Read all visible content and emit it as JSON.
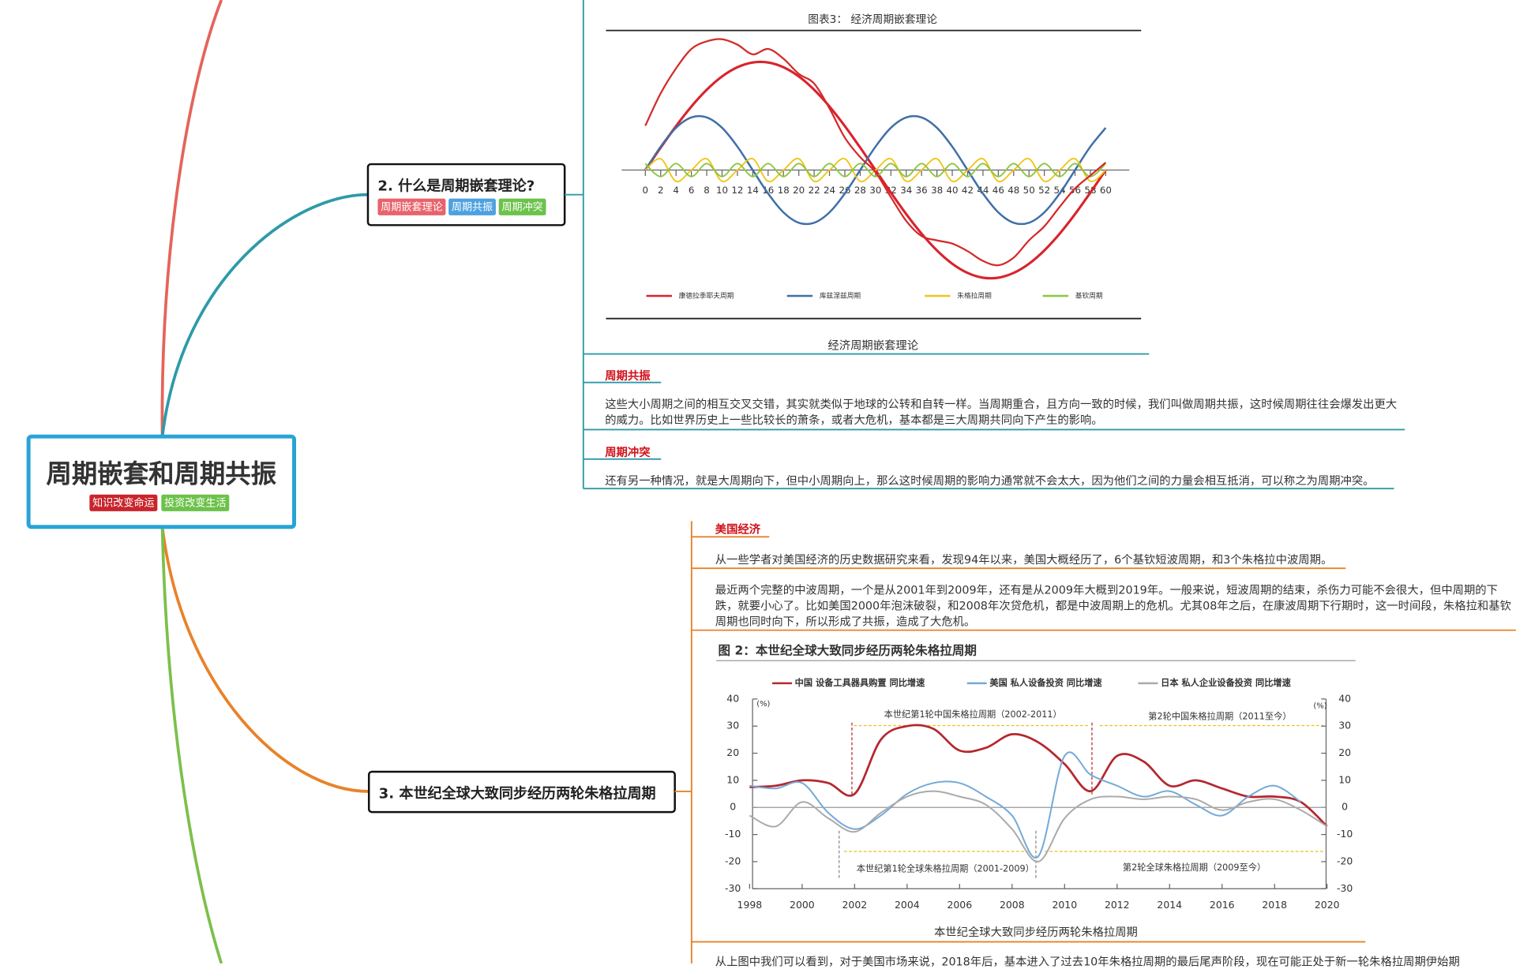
{
  "root": {
    "title": "周期嵌套和周期共振",
    "tags": [
      "知识改变命运",
      "投资改变生活"
    ]
  },
  "topic2": {
    "title": "2. 什么是周期嵌套理论?",
    "tags": [
      "周期嵌套理论",
      "周期共振",
      "周期冲突"
    ],
    "figure": {
      "type": "line",
      "title": "图表3：  经济周期嵌套理论",
      "x": [
        0,
        2,
        4,
        6,
        8,
        10,
        12,
        14,
        16,
        18,
        20,
        22,
        24,
        26,
        28,
        30,
        32,
        34,
        36,
        38,
        40,
        42,
        44,
        46,
        48,
        50,
        52,
        54,
        56,
        58,
        60
      ],
      "xlim": [
        0,
        60
      ],
      "xticks": [
        0,
        2,
        4,
        6,
        8,
        10,
        12,
        14,
        16,
        18,
        20,
        22,
        24,
        26,
        28,
        30,
        32,
        34,
        36,
        38,
        40,
        42,
        44,
        46,
        48,
        50,
        52,
        54,
        56,
        58,
        60
      ],
      "series": [
        {
          "name": "康德拉季耶夫周期",
          "color": "#d9232d",
          "values": [
            0,
            20.8,
            40.7,
            58.8,
            74.3,
            86.6,
            95.1,
            99.5,
            99.5,
            95.1,
            86.6,
            74.3,
            58.8,
            40.7,
            20.8,
            0,
            -20.8,
            -40.7,
            -58.8,
            -74.3,
            -86.6,
            -95.1,
            -99.5,
            -99.5,
            -95.1,
            -86.6,
            -74.3,
            -58.8,
            -40.7,
            -20.8,
            0
          ]
        },
        {
          "name": "库兹涅兹周期",
          "color": "#3f6fa8",
          "values": [
            0,
            21.7,
            39.1,
            48.7,
            48.7,
            39.1,
            21.7,
            0,
            -21.7,
            -39.1,
            -48.7,
            -48.7,
            -39.1,
            -21.7,
            0,
            21.7,
            39.1,
            48.7,
            48.7,
            39.1,
            21.7,
            0,
            -21.7,
            -39.1,
            -48.7,
            -48.7,
            -39.1,
            -21.7,
            0,
            21.7,
            39.1
          ]
        },
        {
          "name": "朱格拉周期",
          "color": "#f0c419",
          "values": [
            0,
            10.4,
            -10.4,
            0,
            10.4,
            -10.4,
            0,
            10.4,
            -10.4,
            0,
            10.4,
            -10.4,
            0,
            10.4,
            -10.4,
            0,
            10.4,
            -10.4,
            0,
            10.4,
            -10.4,
            0,
            10.4,
            -10.4,
            0,
            10.4,
            -10.4,
            0,
            10.4,
            -10.4,
            0
          ]
        },
        {
          "name": "基钦周期",
          "color": "#8cc63f",
          "values": [
            6,
            -6,
            6,
            -6,
            6,
            -6,
            6,
            -6,
            6,
            -6,
            6,
            -6,
            6,
            -6,
            6,
            -6,
            6,
            -6,
            6,
            -6,
            6,
            -6,
            6,
            -6,
            6,
            -6,
            6,
            -6,
            6,
            -6,
            6
          ]
        },
        {
          "color": "#d42a2a",
          "values": [
            41,
            71,
            94,
            112,
            119,
            121,
            116,
            107,
            112,
            103,
            89,
            80,
            57,
            30,
            12,
            -2,
            -25,
            -47,
            -61,
            -65,
            -68,
            -75,
            -84,
            -88,
            -81,
            -65,
            -52,
            -34,
            -17,
            -5,
            7
          ]
        }
      ],
      "caption": "经济周期嵌套理论"
    },
    "sections": [
      {
        "label": "周期共振",
        "text": "这些大小周期之间的相互交叉交错，其实就类似于地球的公转和自转一样。当周期重合，且方向一致的时候，我们叫做周期共振，这时候周期往往会爆发出更大的威力。比如世界历史上一些比较长的萧条，或者大危机，基本都是三大周期共同向下产生的影响。"
      },
      {
        "label": "周期冲突",
        "text": "还有另一种情况，就是大周期向下，但中小周期向上，那么这时候周期的影响力通常就不会太大，因为他们之间的力量会相互抵消，可以称之为周期冲突。"
      }
    ]
  },
  "topic3": {
    "title": "3. 本世纪全球大致同步经历两轮朱格拉周期",
    "label": "美国经济",
    "paragraphs": [
      "从一些学者对美国经济的历史数据研究来看，发现94年以来，美国大概经历了，6个基钦短波周期，和3个朱格拉中波周期。",
      "最近两个完整的中波周期，一个是从2001年到2009年，还有是从2009年大概到2019年。一般来说，短波周期的结束，杀伤力可能不会很大，但中周期的下跌，就要小心了。比如美国2000年泡沫破裂，和2008年次贷危机，都是中波周期上的危机。尤其08年之后，在康波周期下行期时，这一时间段，朱格拉和基钦周期也同时向下，所以形成了共振，造成了大危机。"
    ],
    "figure": {
      "type": "line",
      "title": "图 2：本世纪全球大致同步经历两轮朱格拉周期",
      "x": [
        1998,
        1999,
        2000,
        2001,
        2002,
        2003,
        2004,
        2005,
        2006,
        2007,
        2008,
        2009,
        2010,
        2011,
        2012,
        2013,
        2014,
        2015,
        2016,
        2017,
        2018,
        2019,
        2020
      ],
      "xlim": [
        1998,
        2020
      ],
      "xticks": [
        1998,
        2000,
        2002,
        2004,
        2006,
        2008,
        2010,
        2012,
        2014,
        2016,
        2018,
        2020
      ],
      "ylim": [
        -30,
        40
      ],
      "yticks": [
        -30,
        -20,
        -10,
        0,
        10,
        20,
        30,
        40
      ],
      "y2lim": [
        -30,
        40
      ],
      "y2ticks": [
        -30,
        -20,
        -10,
        0,
        10,
        20,
        30,
        40
      ],
      "series": [
        {
          "name": "中国 设备工具器具购置 同比增速",
          "color": "#b5282e",
          "values": [
            7.5,
            8,
            10,
            9,
            5,
            25,
            30,
            29,
            21,
            22,
            27,
            24,
            16,
            6,
            19,
            17,
            8,
            10,
            7,
            4,
            4,
            2,
            -7
          ]
        },
        {
          "name": "美国 私人设备投资 同比增速",
          "color": "#74a9d8",
          "values": [
            8,
            7,
            9,
            -2,
            -8,
            -3,
            5,
            9,
            9,
            4,
            -3,
            -18,
            19,
            12,
            8,
            4,
            6,
            1,
            -3,
            4,
            8,
            2,
            null
          ]
        },
        {
          "name": "日本 私人企业设备投资 同比增速",
          "color": "#aaaaaa",
          "values": [
            -3,
            -7,
            2,
            -4,
            -9,
            -2,
            4,
            6,
            4,
            1,
            -8,
            -20,
            -4,
            3,
            4,
            3,
            4,
            3,
            -1,
            2,
            3,
            -1,
            -7
          ]
        }
      ],
      "annotations": [
        "(%)",
        "(%)",
        "本世纪第1轮中国朱格拉周期（2002-2011）",
        "第2轮中国朱格拉周期（2011至今）",
        "本世纪第1轮全球朱格拉周期（2001-2009）",
        "第2轮全球朱格拉周期（2009至今）"
      ],
      "caption": "本世纪全球大致同步经历两轮朱格拉周期"
    },
    "next_paragraph": "从上图中我们可以看到，对于美国市场来说，2018年后，基本进入了过去10年朱格拉周期的最后尾声阶段，现在可能正处于新一轮朱格拉周期伊始期"
  }
}
